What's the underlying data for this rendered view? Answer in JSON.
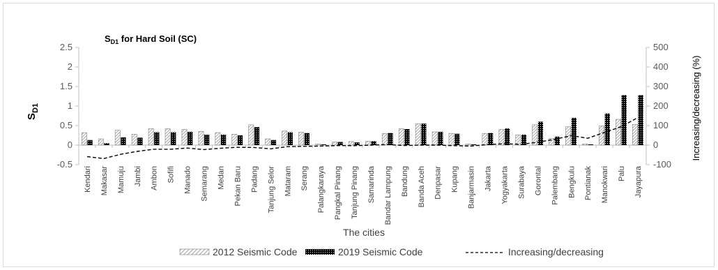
{
  "chart_data": {
    "type": "bar",
    "title_main": "S",
    "title_sub": "D1",
    "title_rest": " for Hard Soil (SC)",
    "ylabel_main": "S",
    "ylabel_sub": "D1",
    "y2label": "Increasing/decreasing (%)",
    "xlabel": "The cities",
    "ylim": [
      -0.5,
      2.5
    ],
    "y2lim": [
      -100,
      500
    ],
    "yticks": [
      "-0.5",
      "0",
      "0.5",
      "1",
      "1.5",
      "2",
      "2.5"
    ],
    "y2ticks": [
      "-100",
      "0",
      "100",
      "200",
      "300",
      "400",
      "500"
    ],
    "categories": [
      "Kendari",
      "Makasar",
      "Mamuju",
      "Jambi",
      "Ambon",
      "Sofifi",
      "Manado",
      "Semarang",
      "Medan",
      "Pekan Baru",
      "Padang",
      "Tanjung Selor",
      "Mataram",
      "Serang",
      "Palangkaraya",
      "Pangkal Pinang",
      "Tanjung Pinang",
      "Samarinda",
      "Bandar Lampung",
      "Bandung",
      "Banda Aceh",
      "Denpasar",
      "Kupang",
      "Banjarmasin",
      "Jakarta",
      "Yogyakarta",
      "Surabaya",
      "Gorontal",
      "Palembang",
      "Bengkulu",
      "Pontianak",
      "Manokwari",
      "Palu",
      "Jayapura"
    ],
    "series": [
      {
        "name": "2012 Seismic Code",
        "axis": "left",
        "values": [
          0.32,
          0.16,
          0.38,
          0.28,
          0.42,
          0.42,
          0.4,
          0.35,
          0.32,
          0.28,
          0.52,
          0.16,
          0.36,
          0.33,
          0.03,
          0.08,
          0.09,
          0.1,
          0.3,
          0.42,
          0.55,
          0.34,
          0.3,
          0.03,
          0.3,
          0.4,
          0.26,
          0.52,
          0.17,
          0.47,
          0.03,
          0.49,
          0.66,
          0.53
        ]
      },
      {
        "name": "2019 Seismic Code",
        "axis": "left",
        "values": [
          0.13,
          0.05,
          0.2,
          0.19,
          0.33,
          0.33,
          0.34,
          0.27,
          0.27,
          0.25,
          0.46,
          0.13,
          0.33,
          0.31,
          0.02,
          0.08,
          0.07,
          0.1,
          0.31,
          0.41,
          0.55,
          0.34,
          0.29,
          0.02,
          0.31,
          0.43,
          0.27,
          0.6,
          0.22,
          0.7,
          0.02,
          0.81,
          1.28,
          1.28
        ]
      },
      {
        "name": "Increasing/decreasing",
        "axis": "right",
        "values": [
          -59,
          -69,
          -47,
          -32,
          -21,
          -21,
          -15,
          -23,
          -16,
          -11,
          -12,
          -19,
          -8,
          -6,
          -5,
          -2,
          -3,
          0,
          3,
          -2,
          0,
          0,
          -3,
          -5,
          3,
          7,
          4,
          15,
          29,
          49,
          35,
          65,
          94,
          141
        ]
      }
    ],
    "colors": {
      "bar_2012_fill": "#ffffff",
      "bar_2012_hatch": "#7f7f7f",
      "bar_2019": "#000000",
      "line": "#000000",
      "axis": "#bfbfbf"
    },
    "legend_position": "bottom",
    "grid": false
  }
}
